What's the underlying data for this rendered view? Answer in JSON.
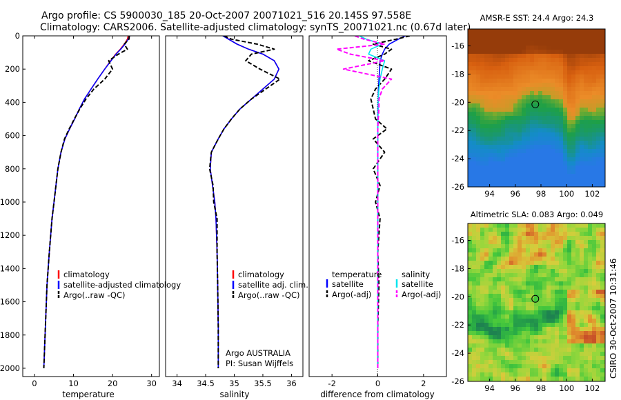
{
  "header": {
    "line1": "Argo profile: CS 5900030_185 20-Oct-2007 20071021_516 20.145S 97.558E",
    "line2": "Climatology: CARS2006. Satellite-adjusted climatology: synTS_20071021.nc (0.67d later)"
  },
  "side_note": "CSIRO 30-Oct-2007 10:31:46",
  "colors": {
    "climatology": "#ff0000",
    "satellite": "#0000ff",
    "argo": "#000000",
    "salinity_satellite": "#00e5ee",
    "salinity_argo": "#ff00ff",
    "sst_warm": "#e07d12",
    "sst_cool": "#1a9a5a",
    "sla_base": "#3cc63c"
  },
  "chart_data": [
    {
      "id": "temperature",
      "type": "line",
      "xlabel": "temperature",
      "ylabel": "",
      "xlim": [
        -3,
        32
      ],
      "ylim": [
        2050,
        0
      ],
      "y_reversed": true,
      "xticks": [
        "0",
        "10",
        "20",
        "30"
      ],
      "xtick_values": [
        0,
        10,
        20,
        30
      ],
      "yticks": [
        "0",
        "200",
        "400",
        "600",
        "800",
        "1000",
        "1200",
        "1400",
        "1600",
        "1800",
        "2000"
      ],
      "ytick_values": [
        0,
        200,
        400,
        600,
        800,
        1000,
        1200,
        1400,
        1600,
        1800,
        2000
      ],
      "series": [
        {
          "name": "climatology",
          "style": "solid",
          "color": "#ff0000",
          "x": [
            24,
            23.8,
            23.0,
            22.0,
            20.8,
            19.5,
            18.0,
            16.2,
            14.5,
            12.8,
            11.5,
            10.3,
            9.0,
            7.8,
            6.8,
            6.0,
            5.5,
            5.0,
            4.5,
            3.8,
            3.2,
            2.8,
            2.4
          ],
          "y": [
            0,
            20,
            50,
            80,
            110,
            150,
            200,
            260,
            320,
            380,
            440,
            500,
            560,
            620,
            700,
            800,
            900,
            1000,
            1100,
            1300,
            1500,
            1750,
            2000
          ]
        },
        {
          "name": "satellite-adjusted climatology",
          "style": "solid",
          "color": "#0000ff",
          "x": [
            24.4,
            24.0,
            23.2,
            22.1,
            20.9,
            19.6,
            18.0,
            16.2,
            14.5,
            12.8,
            11.5,
            10.3,
            9.0,
            7.8,
            6.8,
            6.0,
            5.5,
            5.0,
            4.5,
            3.8,
            3.2,
            2.8,
            2.4
          ],
          "y": [
            0,
            20,
            50,
            80,
            110,
            150,
            200,
            260,
            320,
            380,
            440,
            500,
            560,
            620,
            700,
            800,
            900,
            1000,
            1100,
            1300,
            1500,
            1750,
            2000
          ]
        },
        {
          "name": "Argo(..raw -QC)",
          "style": "dashed",
          "color": "#000000",
          "x": [
            24.3,
            24.2,
            23.0,
            23.8,
            21.5,
            19.0,
            20.0,
            18.0,
            15.2,
            13.2,
            11.6,
            10.2,
            8.9,
            7.7,
            6.8,
            6.0,
            5.5,
            5.0,
            4.5,
            3.8,
            3.2,
            2.8,
            2.4
          ],
          "y": [
            0,
            20,
            50,
            80,
            110,
            150,
            200,
            260,
            320,
            380,
            440,
            500,
            560,
            620,
            700,
            800,
            900,
            1000,
            1100,
            1300,
            1500,
            1750,
            2000
          ]
        }
      ],
      "legend": {
        "placement": "lower-right",
        "entries": [
          "climatology",
          "satellite-adjusted climatology",
          "Argo(..raw -QC)"
        ]
      }
    },
    {
      "id": "salinity",
      "type": "line",
      "xlabel": "salinity",
      "xlim": [
        33.8,
        36.2
      ],
      "ylim": [
        2050,
        0
      ],
      "y_reversed": true,
      "xticks": [
        "34",
        "34.5",
        "35",
        "35.5",
        "36"
      ],
      "xtick_values": [
        34,
        34.5,
        35,
        35.5,
        36
      ],
      "series": [
        {
          "name": "climatology",
          "style": "solid",
          "color": "#ff0000",
          "x": [
            34.85,
            34.9,
            35.05,
            35.25,
            35.5,
            35.7,
            35.78,
            35.7,
            35.5,
            35.3,
            35.1,
            34.95,
            34.82,
            34.72,
            34.6,
            34.58,
            34.62,
            34.66,
            34.68,
            34.7,
            34.71,
            34.72,
            34.72
          ],
          "y": [
            0,
            20,
            50,
            80,
            110,
            150,
            200,
            260,
            320,
            380,
            440,
            500,
            560,
            620,
            700,
            800,
            900,
            1000,
            1100,
            1300,
            1500,
            1750,
            2000
          ]
        },
        {
          "name": "satellite adj. clim.",
          "style": "solid",
          "color": "#0000ff",
          "x": [
            34.8,
            34.9,
            35.05,
            35.25,
            35.5,
            35.7,
            35.78,
            35.7,
            35.5,
            35.3,
            35.1,
            34.95,
            34.82,
            34.72,
            34.6,
            34.58,
            34.62,
            34.66,
            34.68,
            34.7,
            34.71,
            34.72,
            34.72
          ],
          "y": [
            0,
            20,
            50,
            80,
            110,
            150,
            200,
            260,
            320,
            380,
            440,
            500,
            560,
            620,
            700,
            800,
            900,
            1000,
            1100,
            1300,
            1500,
            1750,
            2000
          ]
        },
        {
          "name": "Argo(..raw -QC)",
          "style": "dashed",
          "color": "#000000",
          "x": [
            34.82,
            34.95,
            35.4,
            35.7,
            35.3,
            35.2,
            35.45,
            35.8,
            35.55,
            35.3,
            35.1,
            34.95,
            34.82,
            34.72,
            34.6,
            34.57,
            34.63,
            34.64,
            34.7,
            34.7,
            34.71,
            34.72,
            34.72
          ],
          "y": [
            0,
            20,
            50,
            80,
            110,
            150,
            200,
            260,
            320,
            380,
            440,
            500,
            560,
            620,
            700,
            800,
            900,
            1000,
            1100,
            1300,
            1500,
            1750,
            2000
          ]
        }
      ],
      "legend": {
        "placement": "lower-right",
        "entries": [
          "climatology",
          "satellite adj. clim.",
          "Argo(..raw -QC)"
        ]
      },
      "annotation": {
        "line1": "Argo AUSTRALIA",
        "line2": "PI: Susan Wijffels"
      }
    },
    {
      "id": "difference",
      "type": "line",
      "xlabel": "difference from climatology",
      "xlim": [
        -3,
        3
      ],
      "ylim": [
        2050,
        0
      ],
      "y_reversed": true,
      "xticks": [
        "-2",
        "0",
        "2"
      ],
      "xtick_values": [
        -2,
        0,
        2
      ],
      "series": [
        {
          "name": "temperature satellite",
          "style": "solid",
          "color": "#0000ff",
          "x": [
            1.2,
            0.9,
            0.5,
            0.3,
            0.2,
            0.1,
            0.08,
            0.05,
            0.03,
            0.02,
            0.01,
            0.0,
            0.0,
            0.0,
            0.0,
            0.0,
            0.0,
            0.0,
            0.0,
            0.0,
            0.0,
            0.0,
            0.0
          ],
          "y": [
            0,
            20,
            50,
            80,
            110,
            150,
            200,
            260,
            320,
            380,
            440,
            500,
            560,
            620,
            700,
            800,
            900,
            1000,
            1100,
            1300,
            1500,
            1750,
            2000
          ]
        },
        {
          "name": "temperature Argo(-adj)",
          "style": "dashed",
          "color": "#000000",
          "x": [
            1.4,
            0.8,
            -0.2,
            0.6,
            0.3,
            -0.4,
            0.6,
            0.3,
            -0.1,
            -0.3,
            -0.2,
            -0.1,
            0.4,
            -0.2,
            0.3,
            -0.2,
            0.1,
            -0.1,
            0.1,
            0.0,
            0.05,
            0.0,
            0.0
          ],
          "y": [
            0,
            20,
            50,
            80,
            110,
            150,
            200,
            260,
            320,
            380,
            440,
            500,
            560,
            620,
            700,
            800,
            900,
            1000,
            1100,
            1300,
            1500,
            1750,
            2000
          ]
        },
        {
          "name": "salinity satellite",
          "style": "solid",
          "color": "#00e5ee",
          "x": [
            -0.8,
            -0.5,
            0.2,
            -0.3,
            -0.4,
            0.3,
            0.2,
            0.1,
            0.05,
            0.02,
            0.02,
            0.01,
            0.0,
            0.0,
            0.0,
            0.0,
            0.0,
            0.0,
            0.0,
            0.0,
            0.0,
            0.0,
            0.0
          ],
          "y": [
            0,
            20,
            50,
            80,
            110,
            150,
            200,
            260,
            320,
            380,
            440,
            500,
            560,
            620,
            700,
            800,
            900,
            1000,
            1100,
            1300,
            1500,
            1750,
            2000
          ]
        },
        {
          "name": "salinity Argo(-adj)",
          "style": "dashed",
          "color": "#ff00ff",
          "x": [
            -1.0,
            -0.6,
            0.3,
            -1.8,
            -1.2,
            0.3,
            -1.5,
            0.6,
            0.2,
            0.05,
            0.05,
            0.02,
            0.0,
            0.0,
            0.0,
            0.0,
            0.0,
            0.0,
            0.0,
            0.0,
            0.0,
            0.0,
            0.0
          ],
          "y": [
            0,
            20,
            50,
            80,
            110,
            150,
            200,
            260,
            320,
            380,
            440,
            500,
            560,
            620,
            700,
            800,
            900,
            1000,
            1100,
            1300,
            1500,
            1750,
            2000
          ]
        }
      ],
      "legend": {
        "placement": "lower-left",
        "headers": [
          "temperature",
          "salinity"
        ],
        "entries": [
          "satellite",
          "Argo(-adj)",
          "satellite",
          "Argo(-adj)"
        ]
      }
    },
    {
      "id": "sst_map",
      "type": "heatmap",
      "title": "AMSR-E SST: 24.4 Argo: 24.3",
      "xlim": [
        92.3,
        103
      ],
      "ylim": [
        -26,
        -14.8
      ],
      "xticks": [
        "94",
        "96",
        "98",
        "100",
        "102"
      ],
      "xtick_values": [
        94,
        96,
        98,
        100,
        102
      ],
      "yticks": [
        "-16",
        "-18",
        "-20",
        "-22",
        "-24",
        "-26"
      ],
      "ytick_values": [
        -16,
        -18,
        -20,
        -22,
        -24,
        -26
      ],
      "marker": {
        "lon": 97.558,
        "lat": -20.145
      }
    },
    {
      "id": "sla_map",
      "type": "heatmap",
      "title": "Altimetric SLA: 0.083 Argo: 0.049",
      "xlim": [
        92.3,
        103
      ],
      "ylim": [
        -26,
        -14.8
      ],
      "xticks": [
        "94",
        "96",
        "98",
        "100",
        "102"
      ],
      "xtick_values": [
        94,
        96,
        98,
        100,
        102
      ],
      "yticks": [
        "-16",
        "-18",
        "-20",
        "-22",
        "-24",
        "-26"
      ],
      "ytick_values": [
        -16,
        -18,
        -20,
        -22,
        -24,
        -26
      ],
      "marker": {
        "lon": 97.558,
        "lat": -20.145
      }
    }
  ]
}
